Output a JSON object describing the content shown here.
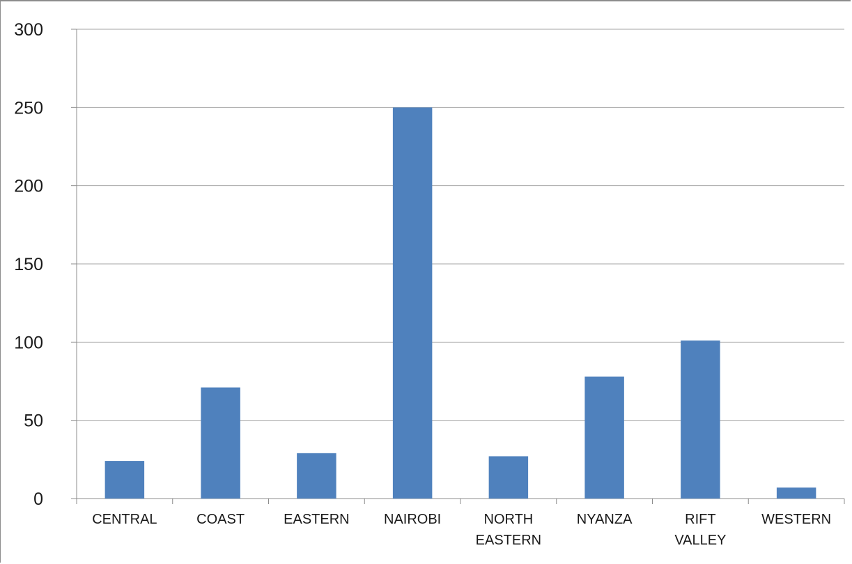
{
  "chart_data": {
    "type": "bar",
    "title": "",
    "xlabel": "",
    "ylabel": "",
    "categories": [
      "CENTRAL",
      "COAST",
      "EASTERN",
      "NAIROBI",
      "NORTH EASTERN",
      "NYANZA",
      "RIFT VALLEY",
      "WESTERN"
    ],
    "category_lines": [
      [
        "CENTRAL"
      ],
      [
        "COAST"
      ],
      [
        "EASTERN"
      ],
      [
        "NAIROBI"
      ],
      [
        "NORTH",
        "EASTERN"
      ],
      [
        "NYANZA"
      ],
      [
        "RIFT",
        "VALLEY"
      ],
      [
        "WESTERN"
      ]
    ],
    "values": [
      24,
      71,
      29,
      250,
      27,
      78,
      101,
      7
    ],
    "ylim": [
      0,
      300
    ],
    "yticks": [
      0,
      50,
      100,
      150,
      200,
      250,
      300
    ],
    "grid": true,
    "legend": "none",
    "bar_color": "#4f81bd",
    "gridline_color": "#a6a6a6",
    "axis_color": "#8c8c8c"
  }
}
